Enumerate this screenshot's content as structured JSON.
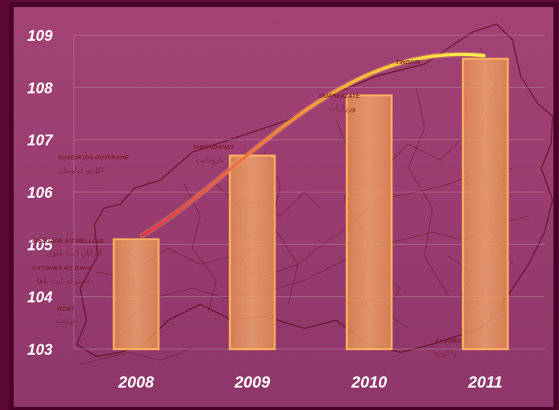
{
  "chart_data": {
    "type": "bar",
    "categories": [
      "2008",
      "2009",
      "2010",
      "2011"
    ],
    "values": [
      105.1,
      106.7,
      107.85,
      108.55
    ],
    "ylim": [
      103,
      109
    ],
    "yticks": [
      103,
      104,
      105,
      106,
      107,
      108,
      109
    ],
    "grid": true,
    "colors": {
      "bar_fill": "#f0a060",
      "bar_edge": "#ffb060",
      "trend_start": "#e23a4a",
      "trend_end": "#f8e030",
      "background": "#9a3d70",
      "frame": "#5a0a35"
    },
    "trend_line": true,
    "map_labels": [
      {
        "name": "AGADIR IDA OUTANANE",
        "sub": "اكادير اداوتنان"
      },
      {
        "name": "TAROUDANNT",
        "sub": "تارودانت"
      },
      {
        "name": "OUARZAZATE",
        "sub": "ورزازات"
      },
      {
        "name": "TINGHIR",
        "sub": ""
      },
      {
        "name": "INEZGANE AIT MELLOUL",
        "sub": "انزكان ايت ملول"
      },
      {
        "name": "CHTOUKA AIT BAHA",
        "sub": "اشتوكة ايت باها"
      },
      {
        "name": "TIZNIT",
        "sub": "تزنيت"
      },
      {
        "name": "ZAGORA",
        "sub": "زاكورة"
      }
    ]
  }
}
